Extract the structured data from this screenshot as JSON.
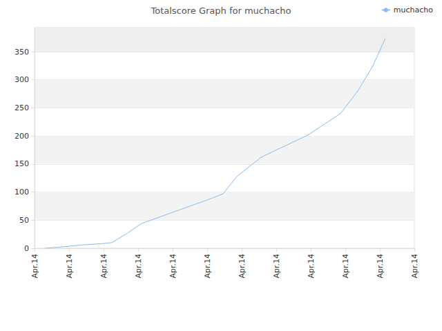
{
  "chart_data": {
    "type": "line",
    "title": "Totalscore Graph for muchacho",
    "x": [
      0.3,
      0.9,
      1.4,
      1.9,
      2.24,
      2.64,
      3.1,
      4.0,
      5.0,
      5.46,
      5.86,
      6.56,
      7.0,
      7.9,
      8.86,
      9.36,
      9.8,
      10.16
    ],
    "series": [
      {
        "name": "muchacho",
        "color": "#88bbee",
        "values": [
          0,
          3,
          6,
          8,
          10,
          25,
          44,
          64,
          86,
          97,
          128,
          162,
          175,
          201,
          240,
          280,
          325,
          374
        ]
      }
    ],
    "xlim": [
      0,
      11
    ],
    "xticks": [
      {
        "value": 0,
        "label": "Apr.14"
      },
      {
        "value": 1,
        "label": "Apr.14"
      },
      {
        "value": 2,
        "label": "Apr.14"
      },
      {
        "value": 3,
        "label": "Apr.14"
      },
      {
        "value": 4,
        "label": "Apr.14"
      },
      {
        "value": 5,
        "label": "Apr.14"
      },
      {
        "value": 6,
        "label": "Apr.14"
      },
      {
        "value": 7,
        "label": "Apr.14"
      },
      {
        "value": 8,
        "label": "Apr.14"
      },
      {
        "value": 9,
        "label": "Apr.14"
      },
      {
        "value": 10,
        "label": "Apr.14"
      },
      {
        "value": 11,
        "label": "Apr.14"
      }
    ],
    "ylim": [
      0,
      393
    ],
    "yticks": [
      0,
      50,
      100,
      150,
      200,
      250,
      300,
      350
    ],
    "grid": true,
    "legend": "upper right"
  }
}
